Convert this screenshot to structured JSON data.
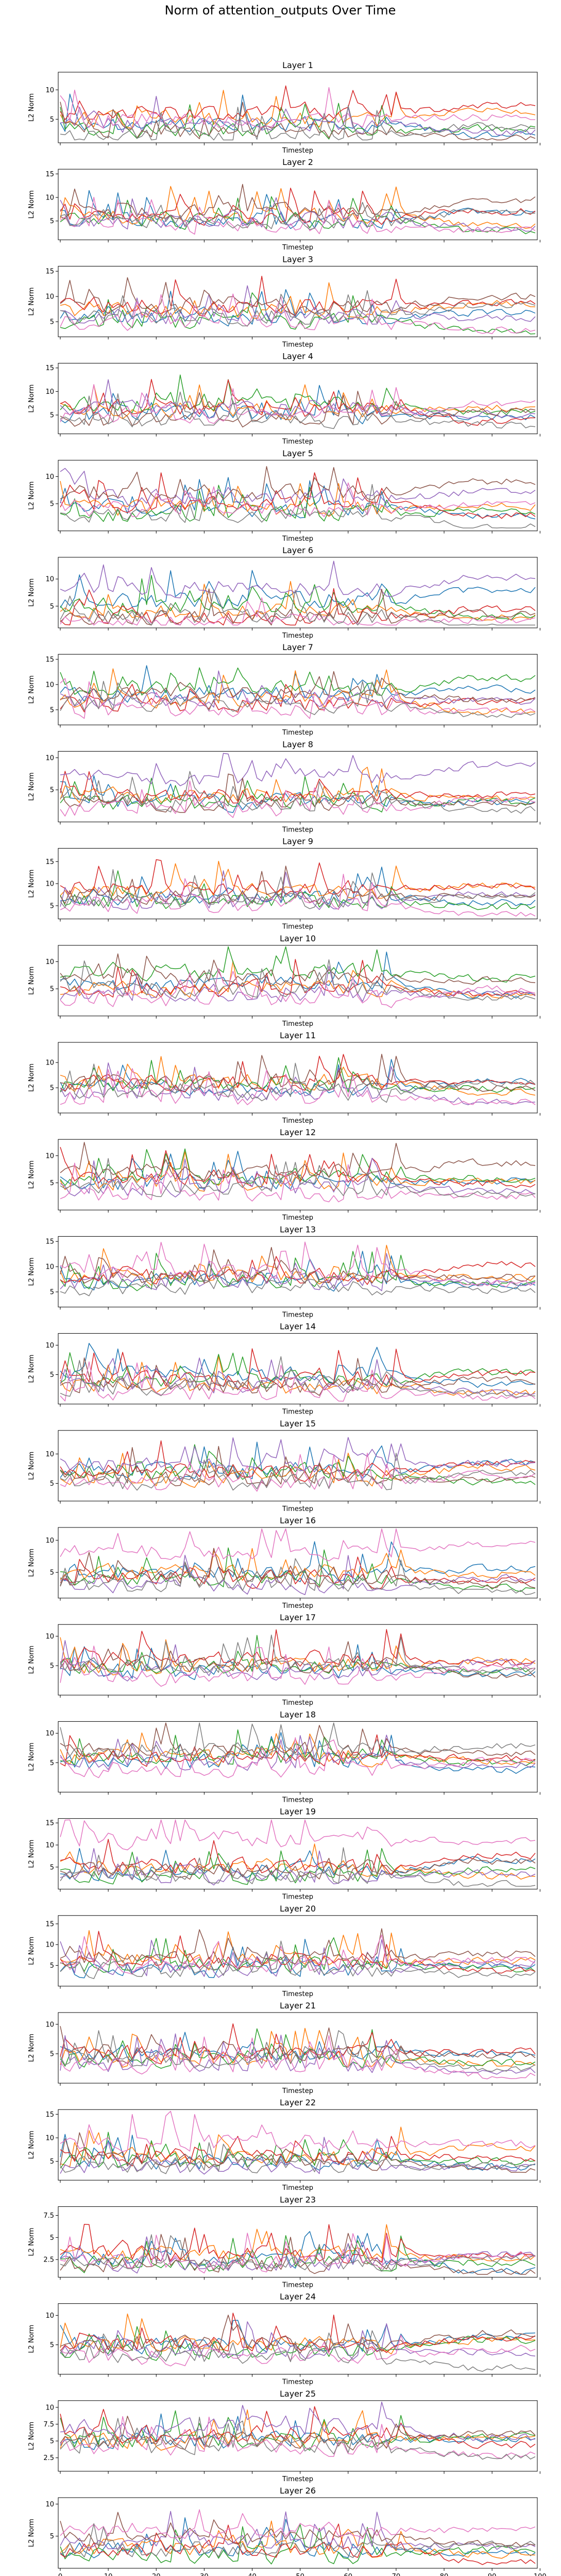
{
  "figure": {
    "title": "Norm of attention_outputs Over Time",
    "xlabel": "Timestep",
    "ylabel": "L2 Norm",
    "x_ticks": [
      0,
      10,
      20,
      30,
      40,
      50,
      60,
      70,
      80,
      90,
      100
    ],
    "series_colors": [
      "#1f77b4",
      "#ff7f0e",
      "#2ca02c",
      "#d62728",
      "#9467bd",
      "#8c564b",
      "#e377c2",
      "#7f7f7f"
    ]
  },
  "chart_data": [
    {
      "type": "line",
      "title": "Layer 1",
      "xlim": [
        0,
        99
      ],
      "ylim": [
        1,
        13
      ],
      "yticks": [
        5,
        10
      ],
      "seed": 11,
      "levels": [
        4,
        5,
        3,
        6,
        4,
        3,
        5,
        2
      ]
    },
    {
      "type": "line",
      "title": "Layer 2",
      "xlim": [
        0,
        99
      ],
      "ylim": [
        1,
        16
      ],
      "yticks": [
        5,
        10,
        15
      ],
      "seed": 12,
      "levels": [
        5,
        6,
        5,
        6,
        5,
        7,
        4,
        5
      ]
    },
    {
      "type": "line",
      "title": "Layer 3",
      "xlim": [
        0,
        99
      ],
      "ylim": [
        2,
        16
      ],
      "yticks": [
        5,
        10,
        15
      ],
      "seed": 13,
      "levels": [
        6,
        7,
        5,
        8,
        6,
        8,
        5,
        6
      ]
    },
    {
      "type": "line",
      "title": "Layer 4",
      "xlim": [
        0,
        99
      ],
      "ylim": [
        1,
        16
      ],
      "yticks": [
        5,
        10,
        15
      ],
      "seed": 14,
      "levels": [
        5,
        6,
        7,
        6,
        6,
        4,
        5,
        4
      ]
    },
    {
      "type": "line",
      "title": "Layer 5",
      "xlim": [
        0,
        99
      ],
      "ylim": [
        0,
        13
      ],
      "yticks": [
        5,
        10
      ],
      "seed": 15,
      "levels": [
        4,
        4,
        3,
        5,
        6,
        7,
        4,
        3
      ]
    },
    {
      "type": "line",
      "title": "Layer 6",
      "xlim": [
        0,
        99
      ],
      "ylim": [
        1,
        14
      ],
      "yticks": [
        5,
        10
      ],
      "seed": 16,
      "levels": [
        6,
        4,
        5,
        3,
        8,
        3,
        2,
        3
      ]
    },
    {
      "type": "line",
      "title": "Layer 7",
      "xlim": [
        0,
        99
      ],
      "ylim": [
        2,
        16
      ],
      "yticks": [
        5,
        10,
        15
      ],
      "seed": 17,
      "levels": [
        8,
        7,
        9,
        6,
        7,
        8,
        5,
        6
      ]
    },
    {
      "type": "line",
      "title": "Layer 8",
      "xlim": [
        0,
        99
      ],
      "ylim": [
        0,
        11
      ],
      "yticks": [
        5,
        10
      ],
      "seed": 18,
      "levels": [
        3,
        4,
        3,
        4,
        7,
        3,
        2,
        3
      ]
    },
    {
      "type": "line",
      "title": "Layer 9",
      "xlim": [
        0,
        99
      ],
      "ylim": [
        2,
        18
      ],
      "yticks": [
        5,
        10,
        15
      ],
      "seed": 19,
      "levels": [
        7,
        8,
        6,
        9,
        6,
        7,
        5,
        6
      ]
    },
    {
      "type": "line",
      "title": "Layer 10",
      "xlim": [
        0,
        99
      ],
      "ylim": [
        0,
        13
      ],
      "yticks": [
        5,
        10
      ],
      "seed": 20,
      "levels": [
        6,
        5,
        8,
        5,
        4,
        7,
        3,
        5
      ]
    },
    {
      "type": "line",
      "title": "Layer 11",
      "xlim": [
        0,
        99
      ],
      "ylim": [
        0,
        14
      ],
      "yticks": [
        5,
        10
      ],
      "seed": 21,
      "levels": [
        5,
        6,
        5,
        6,
        4,
        6,
        3,
        4
      ]
    },
    {
      "type": "line",
      "title": "Layer 12",
      "xlim": [
        0,
        99
      ],
      "ylim": [
        0,
        13
      ],
      "yticks": [
        5,
        10
      ],
      "seed": 22,
      "levels": [
        5,
        5,
        6,
        6,
        4,
        7,
        3,
        4
      ]
    },
    {
      "type": "line",
      "title": "Layer 13",
      "xlim": [
        0,
        99
      ],
      "ylim": [
        2,
        16
      ],
      "yticks": [
        5,
        10,
        15
      ],
      "seed": 23,
      "levels": [
        7,
        8,
        7,
        8,
        7,
        8,
        9,
        6
      ]
    },
    {
      "type": "line",
      "title": "Layer 14",
      "xlim": [
        0,
        99
      ],
      "ylim": [
        0,
        12
      ],
      "yticks": [
        5,
        10
      ],
      "seed": 24,
      "levels": [
        5,
        3,
        4,
        4,
        3,
        3,
        2,
        3
      ]
    },
    {
      "type": "line",
      "title": "Layer 15",
      "xlim": [
        0,
        99
      ],
      "ylim": [
        2,
        14
      ],
      "yticks": [
        5,
        10
      ],
      "seed": 25,
      "levels": [
        7,
        6,
        7,
        7,
        8,
        6,
        5,
        5
      ]
    },
    {
      "type": "line",
      "title": "Layer 16",
      "xlim": [
        0,
        99
      ],
      "ylim": [
        1,
        12
      ],
      "yticks": [
        5,
        10
      ],
      "seed": 26,
      "levels": [
        5,
        5,
        4,
        4,
        3,
        4,
        8,
        3
      ]
    },
    {
      "type": "line",
      "title": "Layer 17",
      "xlim": [
        0,
        99
      ],
      "ylim": [
        0,
        12
      ],
      "yticks": [
        5,
        10
      ],
      "seed": 27,
      "levels": [
        4,
        5,
        5,
        6,
        4,
        5,
        3,
        5
      ]
    },
    {
      "type": "line",
      "title": "Layer 18",
      "xlim": [
        0,
        99
      ],
      "ylim": [
        0,
        12
      ],
      "yticks": [
        5,
        10
      ],
      "seed": 28,
      "levels": [
        5,
        6,
        6,
        6,
        5,
        7,
        4,
        7
      ]
    },
    {
      "type": "line",
      "title": "Layer 19",
      "xlim": [
        0,
        99
      ],
      "ylim": [
        0,
        16
      ],
      "yticks": [
        5,
        10,
        15
      ],
      "seed": 29,
      "levels": [
        4,
        5,
        3,
        5,
        3,
        4,
        11,
        3
      ]
    },
    {
      "type": "line",
      "title": "Layer 20",
      "xlim": [
        0,
        99
      ],
      "ylim": [
        0,
        17
      ],
      "yticks": [
        5,
        10,
        15
      ],
      "seed": 30,
      "levels": [
        4,
        6,
        5,
        6,
        4,
        7,
        5,
        4
      ]
    },
    {
      "type": "line",
      "title": "Layer 21",
      "xlim": [
        0,
        99
      ],
      "ylim": [
        0,
        12
      ],
      "yticks": [
        5,
        10
      ],
      "seed": 31,
      "levels": [
        5,
        4,
        4,
        5,
        3,
        5,
        3,
        4
      ]
    },
    {
      "type": "line",
      "title": "Layer 22",
      "xlim": [
        0,
        99
      ],
      "ylim": [
        1,
        16
      ],
      "yticks": [
        5,
        10,
        15
      ],
      "seed": 32,
      "levels": [
        5,
        6,
        5,
        6,
        4,
        5,
        9,
        4
      ]
    },
    {
      "type": "line",
      "title": "Layer 23",
      "xlim": [
        0,
        99
      ],
      "ylim": [
        0.5,
        8.5
      ],
      "yticks": [
        2.5,
        5.0,
        7.5
      ],
      "seed": 33,
      "levels": [
        2.5,
        3,
        2,
        3,
        2,
        2,
        2,
        2
      ]
    },
    {
      "type": "line",
      "title": "Layer 24",
      "xlim": [
        0,
        99
      ],
      "ylim": [
        0,
        12
      ],
      "yticks": [
        5,
        10
      ],
      "seed": 34,
      "levels": [
        5,
        5,
        4,
        5,
        4,
        5,
        3,
        3
      ]
    },
    {
      "type": "line",
      "title": "Layer 25",
      "xlim": [
        0,
        99
      ],
      "ylim": [
        0.5,
        11
      ],
      "yticks": [
        2.5,
        5.0,
        7.5,
        10.0
      ],
      "seed": 35,
      "levels": [
        5,
        5,
        5,
        6,
        7,
        5,
        4,
        4
      ]
    },
    {
      "type": "line",
      "title": "Layer 26",
      "xlim": [
        0,
        99
      ],
      "ylim": [
        0,
        11
      ],
      "yticks": [
        5,
        10
      ],
      "seed": 36,
      "levels": [
        3,
        3,
        2,
        3,
        4,
        5,
        6,
        3
      ]
    }
  ]
}
